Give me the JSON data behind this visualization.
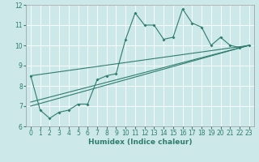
{
  "xlabel": "Humidex (Indice chaleur)",
  "xlim": [
    -0.5,
    23.5
  ],
  "ylim": [
    6,
    12
  ],
  "xticks": [
    0,
    1,
    2,
    3,
    4,
    5,
    6,
    7,
    8,
    9,
    10,
    11,
    12,
    13,
    14,
    15,
    16,
    17,
    18,
    19,
    20,
    21,
    22,
    23
  ],
  "yticks": [
    6,
    7,
    8,
    9,
    10,
    11,
    12
  ],
  "bg_color": "#cce8e8",
  "line_color": "#2e7d6e",
  "grid_color": "#ffffff",
  "main_line": {
    "x": [
      0,
      1,
      2,
      3,
      4,
      5,
      6,
      7,
      8,
      9,
      10,
      11,
      12,
      13,
      14,
      15,
      16,
      17,
      18,
      19,
      20,
      21,
      22,
      23
    ],
    "y": [
      8.5,
      6.8,
      6.4,
      6.7,
      6.8,
      7.1,
      7.1,
      8.3,
      8.5,
      8.6,
      10.3,
      11.6,
      11.0,
      11.0,
      10.3,
      10.4,
      11.8,
      11.1,
      10.9,
      10.0,
      10.4,
      10.0,
      9.9,
      10.0
    ]
  },
  "trend_lines": [
    {
      "x": [
        0,
        23
      ],
      "y": [
        7.0,
        10.0
      ]
    },
    {
      "x": [
        0,
        23
      ],
      "y": [
        7.2,
        10.0
      ]
    },
    {
      "x": [
        0,
        23
      ],
      "y": [
        8.5,
        10.0
      ]
    }
  ]
}
